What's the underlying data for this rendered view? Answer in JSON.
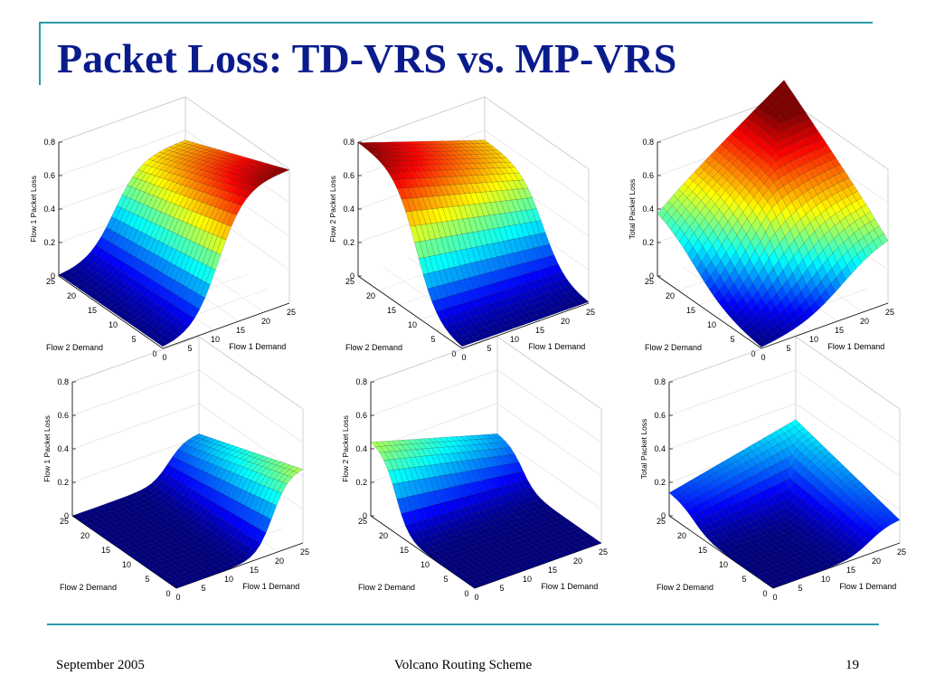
{
  "slide": {
    "title": "Packet Loss: TD-VRS vs. MP-VRS",
    "footer_left": "September 2005",
    "footer_center": "Volcano Routing Scheme",
    "footer_right": "19"
  },
  "colors": {
    "accent": "#2e9aa6",
    "title": "#0a1c8c"
  },
  "chart_data": [
    {
      "type": "surface",
      "row": "top",
      "zlabel": "Flow 1 Packet Loss",
      "xlabel": "Flow 1 Demand",
      "ylabel": "Flow 2 Demand",
      "xlim": [
        0,
        25
      ],
      "ylim": [
        0,
        25
      ],
      "zlim": [
        0,
        0.8
      ],
      "xticks": [
        "0",
        "5",
        "10",
        "15",
        "20",
        "25"
      ],
      "yticks": [
        "0",
        "5",
        "10",
        "15",
        "20",
        "25"
      ],
      "zticks": [
        "0",
        "0.2",
        "0.4",
        "0.6",
        "0.8"
      ],
      "max_value": 0.8,
      "colormap": "jet"
    },
    {
      "type": "surface",
      "row": "top",
      "zlabel": "Flow 2 Packet Loss",
      "xlabel": "Flow 1 Demand",
      "ylabel": "Flow 2 Demand",
      "xlim": [
        0,
        25
      ],
      "ylim": [
        0,
        25
      ],
      "zlim": [
        0,
        0.8
      ],
      "xticks": [
        "0",
        "5",
        "10",
        "15",
        "20",
        "25"
      ],
      "yticks": [
        "0",
        "5",
        "10",
        "15",
        "20",
        "25"
      ],
      "zticks": [
        "0",
        "0.2",
        "0.4",
        "0.6",
        "0.8"
      ],
      "max_value": 0.8,
      "colormap": "jet"
    },
    {
      "type": "surface",
      "row": "top",
      "zlabel": "Total Packet Loss",
      "xlabel": "Flow 1 Demand",
      "ylabel": "Flow 2 Demand",
      "xlim": [
        0,
        25
      ],
      "ylim": [
        0,
        25
      ],
      "zlim": [
        0,
        0.8
      ],
      "xticks": [
        "0",
        "5",
        "10",
        "15",
        "20",
        "25"
      ],
      "yticks": [
        "0",
        "5",
        "10",
        "15",
        "20",
        "25"
      ],
      "zticks": [
        "0",
        "0.2",
        "0.4",
        "0.6",
        "0.8"
      ],
      "max_value": 0.8,
      "colormap": "jet"
    },
    {
      "type": "surface",
      "row": "bottom",
      "zlabel": "Flow 1 Packet Loss",
      "xlabel": "Flow 1 Demand",
      "ylabel": "Flow 2 Demand",
      "xlim": [
        0,
        25
      ],
      "ylim": [
        0,
        25
      ],
      "zlim": [
        0,
        0.8
      ],
      "xticks": [
        "0",
        "5",
        "10",
        "15",
        "20",
        "25"
      ],
      "yticks": [
        "0",
        "5",
        "10",
        "15",
        "20",
        "25"
      ],
      "zticks": [
        "0",
        "0.2",
        "0.4",
        "0.6",
        "0.8"
      ],
      "max_value": 0.45,
      "colormap": "jet"
    },
    {
      "type": "surface",
      "row": "bottom",
      "zlabel": "Flow 2 Packet Loss",
      "xlabel": "Flow 1 Demand",
      "ylabel": "Flow 2 Demand",
      "xlim": [
        0,
        25
      ],
      "ylim": [
        0,
        25
      ],
      "zlim": [
        0,
        0.8
      ],
      "xticks": [
        "0",
        "5",
        "10",
        "15",
        "20",
        "25"
      ],
      "yticks": [
        "0",
        "5",
        "10",
        "15",
        "20",
        "25"
      ],
      "zticks": [
        "0",
        "0.2",
        "0.4",
        "0.6",
        "0.8"
      ],
      "max_value": 0.45,
      "colormap": "jet"
    },
    {
      "type": "surface",
      "row": "bottom",
      "zlabel": "Total Packet Loss",
      "xlabel": "Flow 1 Demand",
      "ylabel": "Flow 2 Demand",
      "xlim": [
        0,
        25
      ],
      "ylim": [
        0,
        25
      ],
      "zlim": [
        0,
        0.8
      ],
      "xticks": [
        "0",
        "5",
        "10",
        "15",
        "20",
        "25"
      ],
      "yticks": [
        "0",
        "5",
        "10",
        "15",
        "20",
        "25"
      ],
      "zticks": [
        "0",
        "0.2",
        "0.4",
        "0.6",
        "0.8"
      ],
      "max_value": 0.32,
      "colormap": "jet"
    }
  ]
}
